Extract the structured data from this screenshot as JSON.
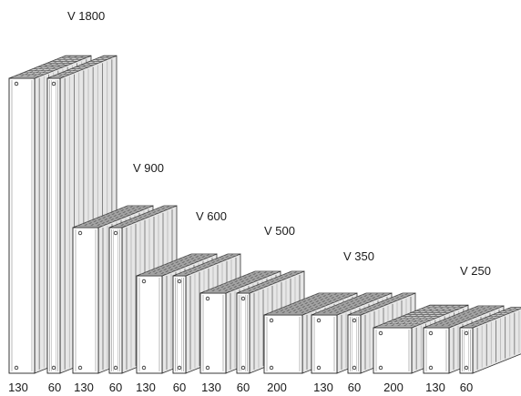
{
  "group_labels": [
    "V 1800",
    "V 900",
    "V 600",
    "V 500",
    "V 350",
    "V 250"
  ],
  "dimension_labels": [
    "130",
    "60",
    "130",
    "60",
    "130",
    "60",
    "130",
    "60",
    "200",
    "130",
    "60",
    "200",
    "130",
    "60"
  ]
}
